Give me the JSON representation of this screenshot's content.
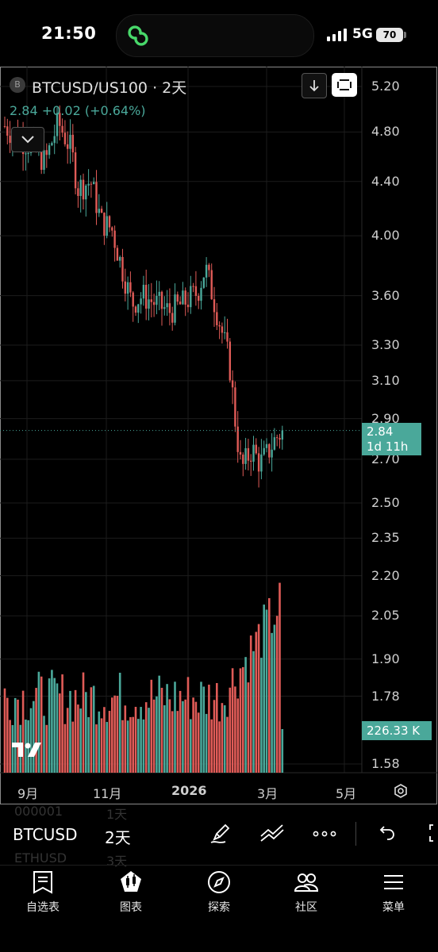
{
  "status": {
    "time": "21:50",
    "network": "5G",
    "battery": "70"
  },
  "chart": {
    "badge": "B",
    "title": "BTCUSD/US100 · 2天",
    "quote": "2.84  +0.02 (+0.64%)",
    "price_tag_value": "2.84",
    "price_tag_countdown": "1d 11h",
    "volume_tag": "226.33 K",
    "y_labels": [
      "5.20",
      "4.80",
      "4.40",
      "4.00",
      "3.60",
      "3.30",
      "3.10",
      "2.90",
      "2.70",
      "2.50",
      "2.35",
      "2.20",
      "2.05",
      "1.90",
      "1.78",
      "1.58"
    ],
    "x_labels": [
      "9月",
      "11月",
      "2026",
      "3月",
      "5月"
    ],
    "colors": {
      "up": "#4aa89a",
      "down": "#e05b57",
      "grid": "#1c1c1c"
    }
  },
  "toolbar": {
    "symbol": "BTCUSD",
    "interval": "2天",
    "ghost_rows": [
      {
        "symbol": "000001",
        "interval": "1天"
      },
      {
        "symbol": "ETHUSD",
        "interval": "3天"
      }
    ],
    "icons": [
      "pen-icon",
      "trend-lines-icon",
      "more-icon",
      "undo-icon",
      "fullscreen-icon"
    ]
  },
  "nav": {
    "items": [
      {
        "label": "自选表",
        "icon": "watchlist-icon"
      },
      {
        "label": "图表",
        "icon": "chart-icon"
      },
      {
        "label": "探索",
        "icon": "compass-icon"
      },
      {
        "label": "社区",
        "icon": "community-icon"
      },
      {
        "label": "菜单",
        "icon": "menu-icon"
      }
    ]
  },
  "chart_data": {
    "type": "candlestick",
    "title": "BTCUSD/US100 · 2天",
    "y_scale": "log",
    "ylim": [
      1.55,
      5.25
    ],
    "x_ticks": [
      "9月",
      "11月",
      "2026",
      "3月",
      "5月"
    ],
    "last_price": 2.84,
    "change": "+0.02 (+0.64%)",
    "price_path": [
      [
        "2025-08-15",
        4.85
      ],
      [
        "2025-08-25",
        4.75
      ],
      [
        "2025-09-05",
        4.68
      ],
      [
        "2025-09-15",
        4.55
      ],
      [
        "2025-09-25",
        4.88
      ],
      [
        "2025-10-05",
        4.65
      ],
      [
        "2025-10-10",
        4.35
      ],
      [
        "2025-10-20",
        4.4
      ],
      [
        "2025-10-28",
        4.1
      ],
      [
        "2025-11-05",
        4.05
      ],
      [
        "2025-11-12",
        3.8
      ],
      [
        "2025-11-20",
        3.55
      ],
      [
        "2025-11-28",
        3.6
      ],
      [
        "2025-12-08",
        3.55
      ],
      [
        "2025-12-18",
        3.5
      ],
      [
        "2025-12-28",
        3.55
      ],
      [
        "2026-01-08",
        3.62
      ],
      [
        "2026-01-14",
        3.78
      ],
      [
        "2026-01-22",
        3.52
      ],
      [
        "2026-02-01",
        3.2
      ],
      [
        "2026-02-06",
        2.85
      ],
      [
        "2026-02-10",
        2.65
      ],
      [
        "2026-02-18",
        2.75
      ],
      [
        "2026-02-24",
        2.68
      ],
      [
        "2026-03-01",
        2.72
      ],
      [
        "2026-03-08",
        2.8
      ],
      [
        "2026-03-14",
        2.84
      ]
    ]
  }
}
